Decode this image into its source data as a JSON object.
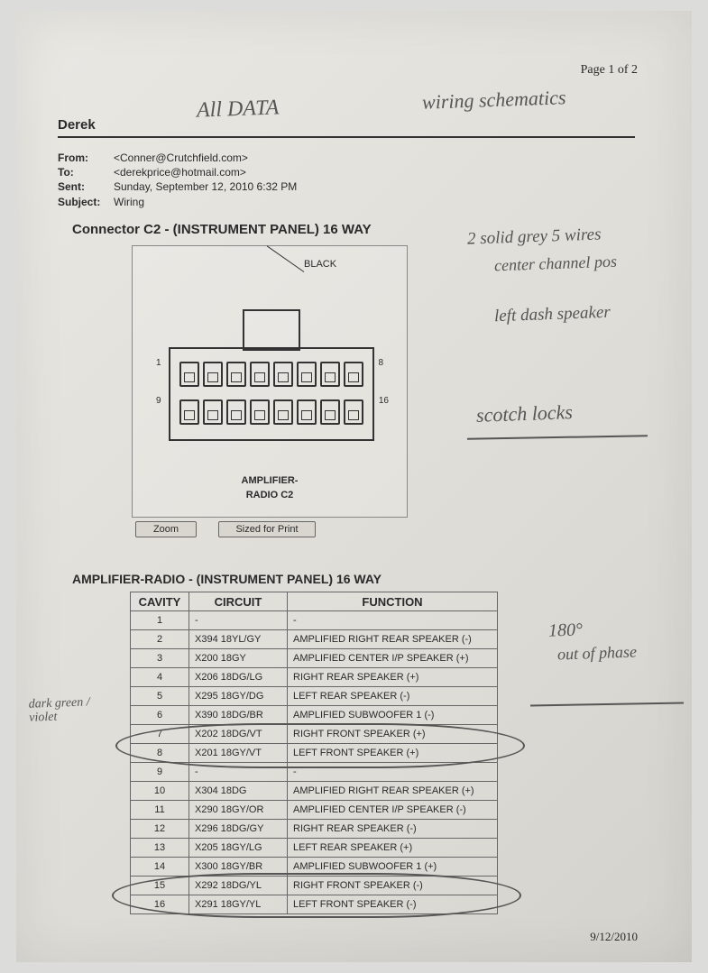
{
  "page_number": "Page 1 of 2",
  "header_name": "Derek",
  "email": {
    "from_label": "From:",
    "from_value": "<Conner@Crutchfield.com>",
    "to_label": "To:",
    "to_value": "<derekprice@hotmail.com>",
    "sent_label": "Sent:",
    "sent_value": "Sunday, September 12, 2010 6:32 PM",
    "subject_label": "Subject:",
    "subject_value": "Wiring"
  },
  "connector_title": "Connector C2 - (INSTRUMENT PANEL) 16 WAY",
  "diagram": {
    "color_label": "BLACK",
    "pin_left_top": "1",
    "pin_right_top": "8",
    "pin_left_bot": "9",
    "pin_right_bot": "16",
    "caption_line1": "AMPLIFIER-",
    "caption_line2": "RADIO C2"
  },
  "buttons": {
    "zoom": "Zoom",
    "print": "Sized for Print"
  },
  "table_title": "AMPLIFIER-RADIO - (INSTRUMENT PANEL) 16 WAY",
  "table": {
    "headers": [
      "CAVITY",
      "CIRCUIT",
      "FUNCTION"
    ],
    "rows": [
      [
        "1",
        "-",
        "-"
      ],
      [
        "2",
        "X394 18YL/GY",
        "AMPLIFIED RIGHT REAR SPEAKER (-)"
      ],
      [
        "3",
        "X200 18GY",
        "AMPLIFIED CENTER I/P SPEAKER (+)"
      ],
      [
        "4",
        "X206 18DG/LG",
        "RIGHT REAR SPEAKER (+)"
      ],
      [
        "5",
        "X295 18GY/DG",
        "LEFT REAR SPEAKER (-)"
      ],
      [
        "6",
        "X390 18DG/BR",
        "AMPLIFIED SUBWOOFER 1 (-)"
      ],
      [
        "7",
        "X202 18DG/VT",
        "RIGHT FRONT SPEAKER (+)"
      ],
      [
        "8",
        "X201 18GY/VT",
        "LEFT FRONT SPEAKER (+)"
      ],
      [
        "9",
        "-",
        "-"
      ],
      [
        "10",
        "X304 18DG",
        "AMPLIFIED RIGHT REAR SPEAKER (+)"
      ],
      [
        "11",
        "X290 18GY/OR",
        "AMPLIFIED CENTER I/P SPEAKER (-)"
      ],
      [
        "12",
        "X296 18DG/GY",
        "RIGHT REAR SPEAKER (-)"
      ],
      [
        "13",
        "X205 18GY/LG",
        "LEFT REAR SPEAKER (+)"
      ],
      [
        "14",
        "X300 18GY/BR",
        "AMPLIFIED SUBWOOFER 1 (+)"
      ],
      [
        "15",
        "X292 18DG/YL",
        "RIGHT FRONT SPEAKER (-)"
      ],
      [
        "16",
        "X291 18GY/YL",
        "LEFT FRONT SPEAKER (-)"
      ]
    ]
  },
  "footer_date": "9/12/2010",
  "handwriting": {
    "h1": "All DATA",
    "h2": "wiring schematics",
    "h3": "2 solid grey 5 wires",
    "h4": "center channel pos",
    "h5": "left dash speaker",
    "h6": "scotch locks",
    "h7": "180°",
    "h8": "out of phase",
    "h9": "dark green / violet"
  },
  "colors": {
    "paper": "#e3e1da",
    "ink": "#2a2a2a",
    "pencil": "#555555",
    "border": "#666666"
  }
}
